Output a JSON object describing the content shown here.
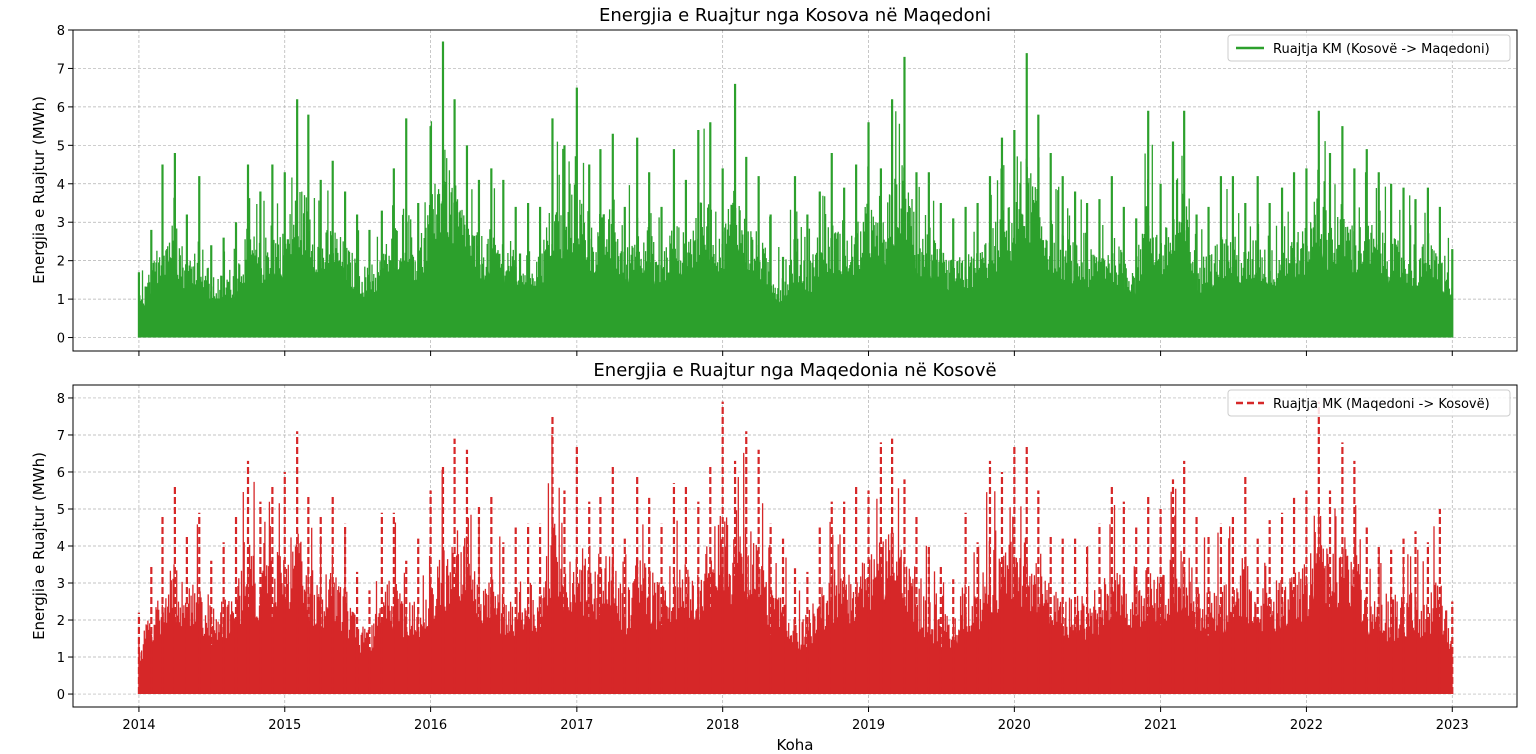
{
  "figure": {
    "xlabel": "Koha"
  },
  "chart_data": [
    {
      "type": "line",
      "title": "Energjia e Ruajtur nga Kosova në Maqedoni",
      "xlabel": "",
      "ylabel": "Energjia e Ruajtur (MWh)",
      "xlim": [
        "2013-07-20",
        "2023-06-12"
      ],
      "ylim": [
        -0.35,
        8.0
      ],
      "yticks": [
        0,
        1,
        2,
        3,
        4,
        5,
        6,
        7,
        8
      ],
      "grid": true,
      "legend": "top-right",
      "series": [
        {
          "name": "Ruajtja KM (Kosovë -> Maqedoni)",
          "color": "#2ca02c",
          "line_style": "solid",
          "points": [
            [
              "2014-01-01",
              1.7
            ],
            [
              "2014-02-01",
              2.8
            ],
            [
              "2014-03-01",
              4.5
            ],
            [
              "2014-04-01",
              4.8
            ],
            [
              "2014-05-01",
              3.2
            ],
            [
              "2014-06-01",
              4.2
            ],
            [
              "2014-07-01",
              2.4
            ],
            [
              "2014-08-01",
              2.6
            ],
            [
              "2014-09-01",
              3.0
            ],
            [
              "2014-10-01",
              4.5
            ],
            [
              "2014-11-01",
              3.8
            ],
            [
              "2014-12-01",
              4.5
            ],
            [
              "2015-01-01",
              4.3
            ],
            [
              "2015-02-01",
              6.2
            ],
            [
              "2015-03-01",
              5.8
            ],
            [
              "2015-04-01",
              4.1
            ],
            [
              "2015-05-01",
              4.6
            ],
            [
              "2015-06-01",
              3.8
            ],
            [
              "2015-07-01",
              3.2
            ],
            [
              "2015-08-01",
              2.8
            ],
            [
              "2015-09-01",
              3.3
            ],
            [
              "2015-10-01",
              4.4
            ],
            [
              "2015-11-01",
              5.7
            ],
            [
              "2015-12-01",
              3.5
            ],
            [
              "2016-01-01",
              5.5
            ],
            [
              "2016-02-01",
              7.7
            ],
            [
              "2016-03-01",
              6.2
            ],
            [
              "2016-04-01",
              5.0
            ],
            [
              "2016-05-01",
              4.1
            ],
            [
              "2016-06-01",
              4.4
            ],
            [
              "2016-07-01",
              4.1
            ],
            [
              "2016-08-01",
              3.4
            ],
            [
              "2016-09-01",
              3.5
            ],
            [
              "2016-10-01",
              3.4
            ],
            [
              "2016-11-01",
              5.7
            ],
            [
              "2016-12-01",
              5.0
            ],
            [
              "2017-01-01",
              6.5
            ],
            [
              "2017-02-01",
              4.5
            ],
            [
              "2017-03-01",
              4.9
            ],
            [
              "2017-04-01",
              5.3
            ],
            [
              "2017-05-01",
              3.4
            ],
            [
              "2017-06-01",
              5.2
            ],
            [
              "2017-07-01",
              4.3
            ],
            [
              "2017-08-01",
              3.4
            ],
            [
              "2017-09-01",
              4.9
            ],
            [
              "2017-10-01",
              4.1
            ],
            [
              "2017-11-01",
              5.4
            ],
            [
              "2017-12-01",
              5.6
            ],
            [
              "2018-01-01",
              4.4
            ],
            [
              "2018-02-01",
              6.6
            ],
            [
              "2018-03-01",
              4.7
            ],
            [
              "2018-04-01",
              4.2
            ],
            [
              "2018-05-01",
              3.2
            ],
            [
              "2018-06-01",
              2.1
            ],
            [
              "2018-07-01",
              4.2
            ],
            [
              "2018-08-01",
              3.2
            ],
            [
              "2018-09-01",
              3.8
            ],
            [
              "2018-10-01",
              4.8
            ],
            [
              "2018-11-01",
              3.9
            ],
            [
              "2018-12-01",
              4.5
            ],
            [
              "2019-01-01",
              5.6
            ],
            [
              "2019-02-01",
              4.4
            ],
            [
              "2019-03-01",
              6.2
            ],
            [
              "2019-04-01",
              7.3
            ],
            [
              "2019-05-01",
              4.3
            ],
            [
              "2019-06-01",
              4.3
            ],
            [
              "2019-07-01",
              3.5
            ],
            [
              "2019-08-01",
              3.1
            ],
            [
              "2019-09-01",
              3.4
            ],
            [
              "2019-10-01",
              3.5
            ],
            [
              "2019-11-01",
              4.2
            ],
            [
              "2019-12-01",
              5.2
            ],
            [
              "2020-01-01",
              5.4
            ],
            [
              "2020-02-01",
              7.4
            ],
            [
              "2020-03-01",
              5.8
            ],
            [
              "2020-04-01",
              4.8
            ],
            [
              "2020-05-01",
              4.2
            ],
            [
              "2020-06-01",
              3.8
            ],
            [
              "2020-07-01",
              3.5
            ],
            [
              "2020-08-01",
              3.6
            ],
            [
              "2020-09-01",
              4.2
            ],
            [
              "2020-10-01",
              3.4
            ],
            [
              "2020-11-01",
              3.1
            ],
            [
              "2020-12-01",
              5.9
            ],
            [
              "2021-01-01",
              4.0
            ],
            [
              "2021-02-01",
              5.1
            ],
            [
              "2021-03-01",
              5.9
            ],
            [
              "2021-04-01",
              3.2
            ],
            [
              "2021-05-01",
              3.4
            ],
            [
              "2021-06-01",
              4.2
            ],
            [
              "2021-07-01",
              4.2
            ],
            [
              "2021-08-01",
              3.5
            ],
            [
              "2021-09-01",
              4.2
            ],
            [
              "2021-10-01",
              3.5
            ],
            [
              "2021-11-01",
              3.9
            ],
            [
              "2021-12-01",
              4.3
            ],
            [
              "2022-01-01",
              4.4
            ],
            [
              "2022-02-01",
              5.9
            ],
            [
              "2022-03-01",
              4.8
            ],
            [
              "2022-04-01",
              5.5
            ],
            [
              "2022-05-01",
              4.4
            ],
            [
              "2022-06-01",
              4.9
            ],
            [
              "2022-07-01",
              4.3
            ],
            [
              "2022-08-01",
              4.0
            ],
            [
              "2022-09-01",
              3.9
            ],
            [
              "2022-10-01",
              3.6
            ],
            [
              "2022-11-01",
              3.9
            ],
            [
              "2022-12-01",
              3.4
            ],
            [
              "2023-01-01",
              2.3
            ]
          ]
        }
      ]
    },
    {
      "type": "line",
      "title": "Energjia e Ruajtur nga Maqedonia në Kosovë",
      "xlabel": "Koha",
      "ylabel": "Energjia e Ruajtur (MWh)",
      "xlim": [
        "2013-07-20",
        "2023-06-12"
      ],
      "ylim": [
        -0.35,
        8.35
      ],
      "yticks": [
        0,
        1,
        2,
        3,
        4,
        5,
        6,
        7,
        8
      ],
      "xticks": [
        "2014",
        "2015",
        "2016",
        "2017",
        "2018",
        "2019",
        "2020",
        "2021",
        "2022",
        "2023"
      ],
      "grid": true,
      "legend": "top-right",
      "series": [
        {
          "name": "Ruajtja MK (Maqedoni -> Kosovë)",
          "color": "#d62728",
          "line_style": "dashed",
          "points": [
            [
              "2014-01-01",
              2.2
            ],
            [
              "2014-02-01",
              3.5
            ],
            [
              "2014-03-01",
              4.8
            ],
            [
              "2014-04-01",
              5.6
            ],
            [
              "2014-05-01",
              4.3
            ],
            [
              "2014-06-01",
              4.9
            ],
            [
              "2014-07-01",
              3.6
            ],
            [
              "2014-08-01",
              4.1
            ],
            [
              "2014-09-01",
              4.8
            ],
            [
              "2014-10-01",
              6.3
            ],
            [
              "2014-11-01",
              5.2
            ],
            [
              "2014-12-01",
              5.6
            ],
            [
              "2015-01-01",
              6.0
            ],
            [
              "2015-02-01",
              7.1
            ],
            [
              "2015-03-01",
              5.4
            ],
            [
              "2015-04-01",
              4.8
            ],
            [
              "2015-05-01",
              5.4
            ],
            [
              "2015-06-01",
              4.6
            ],
            [
              "2015-07-01",
              3.3
            ],
            [
              "2015-08-01",
              2.8
            ],
            [
              "2015-09-01",
              4.9
            ],
            [
              "2015-10-01",
              4.9
            ],
            [
              "2015-11-01",
              3.6
            ],
            [
              "2015-12-01",
              4.2
            ],
            [
              "2016-01-01",
              5.5
            ],
            [
              "2016-02-01",
              6.2
            ],
            [
              "2016-03-01",
              6.9
            ],
            [
              "2016-04-01",
              6.6
            ],
            [
              "2016-05-01",
              5.1
            ],
            [
              "2016-06-01",
              5.4
            ],
            [
              "2016-07-01",
              4.1
            ],
            [
              "2016-08-01",
              4.5
            ],
            [
              "2016-09-01",
              4.6
            ],
            [
              "2016-10-01",
              4.6
            ],
            [
              "2016-11-01",
              7.5
            ],
            [
              "2016-12-01",
              5.5
            ],
            [
              "2017-01-01",
              6.7
            ],
            [
              "2017-02-01",
              5.2
            ],
            [
              "2017-03-01",
              5.4
            ],
            [
              "2017-04-01",
              6.2
            ],
            [
              "2017-05-01",
              4.2
            ],
            [
              "2017-06-01",
              5.9
            ],
            [
              "2017-07-01",
              5.3
            ],
            [
              "2017-08-01",
              4.6
            ],
            [
              "2017-09-01",
              5.7
            ],
            [
              "2017-10-01",
              5.6
            ],
            [
              "2017-11-01",
              5.2
            ],
            [
              "2017-12-01",
              6.2
            ],
            [
              "2018-01-01",
              7.9
            ],
            [
              "2018-02-01",
              6.3
            ],
            [
              "2018-03-01",
              7.1
            ],
            [
              "2018-04-01",
              6.6
            ],
            [
              "2018-05-01",
              4.6
            ],
            [
              "2018-06-01",
              4.2
            ],
            [
              "2018-07-01",
              3.4
            ],
            [
              "2018-08-01",
              3.3
            ],
            [
              "2018-09-01",
              4.5
            ],
            [
              "2018-10-01",
              5.2
            ],
            [
              "2018-11-01",
              5.2
            ],
            [
              "2018-12-01",
              5.6
            ],
            [
              "2019-01-01",
              5.5
            ],
            [
              "2019-02-01",
              6.8
            ],
            [
              "2019-03-01",
              6.9
            ],
            [
              "2019-04-01",
              5.8
            ],
            [
              "2019-05-01",
              4.8
            ],
            [
              "2019-06-01",
              4.0
            ],
            [
              "2019-07-01",
              3.5
            ],
            [
              "2019-08-01",
              3.1
            ],
            [
              "2019-09-01",
              4.9
            ],
            [
              "2019-10-01",
              4.1
            ],
            [
              "2019-11-01",
              6.3
            ],
            [
              "2019-12-01",
              6.0
            ],
            [
              "2020-01-01",
              6.7
            ],
            [
              "2020-02-01",
              6.7
            ],
            [
              "2020-03-01",
              5.5
            ],
            [
              "2020-04-01",
              4.3
            ],
            [
              "2020-05-01",
              4.2
            ],
            [
              "2020-06-01",
              4.2
            ],
            [
              "2020-07-01",
              4.0
            ],
            [
              "2020-08-01",
              4.6
            ],
            [
              "2020-09-01",
              5.6
            ],
            [
              "2020-10-01",
              5.2
            ],
            [
              "2020-11-01",
              4.5
            ],
            [
              "2020-12-01",
              5.4
            ],
            [
              "2021-01-01",
              5.0
            ],
            [
              "2021-02-01",
              5.8
            ],
            [
              "2021-03-01",
              6.3
            ],
            [
              "2021-04-01",
              4.8
            ],
            [
              "2021-05-01",
              4.3
            ],
            [
              "2021-06-01",
              4.6
            ],
            [
              "2021-07-01",
              4.8
            ],
            [
              "2021-08-01",
              5.9
            ],
            [
              "2021-09-01",
              4.2
            ],
            [
              "2021-10-01",
              4.7
            ],
            [
              "2021-11-01",
              4.9
            ],
            [
              "2021-12-01",
              5.3
            ],
            [
              "2022-01-01",
              5.5
            ],
            [
              "2022-02-01",
              7.9
            ],
            [
              "2022-03-01",
              5.5
            ],
            [
              "2022-04-01",
              6.8
            ],
            [
              "2022-05-01",
              6.3
            ],
            [
              "2022-06-01",
              4.5
            ],
            [
              "2022-07-01",
              4.0
            ],
            [
              "2022-08-01",
              3.9
            ],
            [
              "2022-09-01",
              4.2
            ],
            [
              "2022-10-01",
              4.4
            ],
            [
              "2022-11-01",
              4.1
            ],
            [
              "2022-12-01",
              5.0
            ],
            [
              "2023-01-01",
              2.5
            ]
          ]
        }
      ]
    }
  ]
}
